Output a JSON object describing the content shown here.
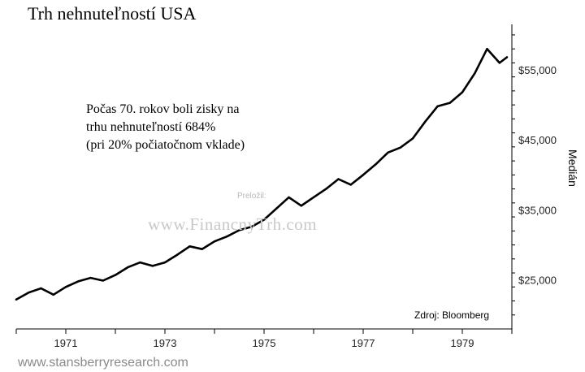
{
  "title": "Trh nehnuteľností USA",
  "annotation_lines": [
    "Počas 70. rokov boli zisky na",
    "trhu nehnuteľností 684%",
    "(pri 20% počiatočnom vklade)"
  ],
  "translator_label": "Preložil:",
  "watermark": "www.FinancnyTrh.com",
  "source": "Zdroj: Bloomberg",
  "footer": "www.stansberryresearch.com",
  "colors": {
    "line": "#000000",
    "axis": "#000000",
    "watermark": "#c8c8c8",
    "footer": "#8a8a8a"
  },
  "chart_data": {
    "type": "line",
    "title": "Trh nehnuteľností USA",
    "xlabel": "",
    "ylabel": "Medián",
    "x_ticks": [
      "1971",
      "1973",
      "1975",
      "1977",
      "1979"
    ],
    "y_ticks": [
      "$25,000",
      "$35,000",
      "$45,000",
      "$55,000"
    ],
    "y_tick_values": [
      25000,
      35000,
      45000,
      55000
    ],
    "xlim": [
      1970.0,
      1980.0
    ],
    "ylim": [
      18000,
      61500
    ],
    "y_axis_side": "right",
    "grid": false,
    "series": [
      {
        "x": [
          1970.0,
          1970.25,
          1970.5,
          1970.75,
          1971.0,
          1971.25,
          1971.5,
          1971.75,
          1972.0,
          1972.25,
          1972.5,
          1972.75,
          1973.0,
          1973.25,
          1973.5,
          1973.75,
          1974.0,
          1974.25,
          1974.5,
          1974.75,
          1975.0,
          1975.25,
          1975.5,
          1975.75,
          1976.0,
          1976.25,
          1976.5,
          1976.75,
          1977.0,
          1977.25,
          1977.5,
          1977.75,
          1978.0,
          1978.25,
          1978.5,
          1978.75,
          1979.0,
          1979.25,
          1979.5,
          1979.75,
          1979.9
        ],
        "values": [
          22200,
          23200,
          23800,
          22900,
          24000,
          24800,
          25300,
          24900,
          25700,
          26800,
          27500,
          27000,
          27500,
          28600,
          29800,
          29400,
          30500,
          31200,
          32100,
          32600,
          33600,
          35200,
          36800,
          35600,
          36800,
          38000,
          39400,
          38600,
          40000,
          41500,
          43200,
          43900,
          45200,
          47600,
          49800,
          50300,
          51800,
          54500,
          58000,
          56000,
          56800
        ]
      }
    ]
  }
}
